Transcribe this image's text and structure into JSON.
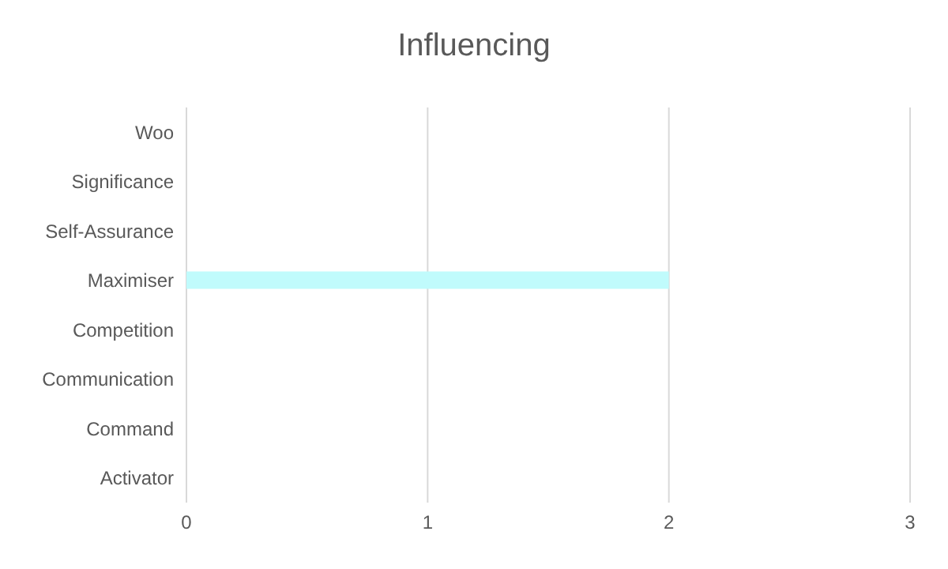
{
  "chart_data": {
    "type": "bar",
    "orientation": "horizontal",
    "title": "Influencing",
    "categories": [
      "Woo",
      "Significance",
      "Self-Assurance",
      "Maximiser",
      "Competition",
      "Communication",
      "Command",
      "Activator"
    ],
    "values": [
      0,
      0,
      0,
      2,
      0,
      0,
      0,
      0
    ],
    "color": "#c0fbfc",
    "xlim": [
      0,
      3
    ],
    "xticks": [
      0,
      1,
      2,
      3
    ],
    "grid": "x",
    "legend": false
  }
}
